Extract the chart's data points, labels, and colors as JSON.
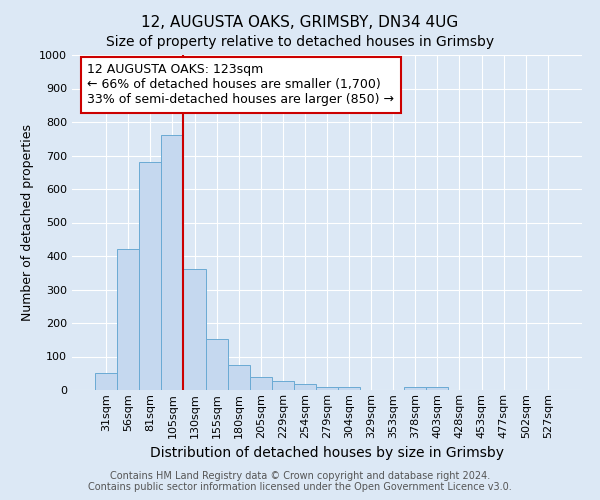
{
  "title1": "12, AUGUSTA OAKS, GRIMSBY, DN34 4UG",
  "title2": "Size of property relative to detached houses in Grimsby",
  "xlabel": "Distribution of detached houses by size in Grimsby",
  "ylabel": "Number of detached properties",
  "bar_labels": [
    "31sqm",
    "56sqm",
    "81sqm",
    "105sqm",
    "130sqm",
    "155sqm",
    "180sqm",
    "205sqm",
    "229sqm",
    "254sqm",
    "279sqm",
    "304sqm",
    "329sqm",
    "353sqm",
    "378sqm",
    "403sqm",
    "428sqm",
    "453sqm",
    "477sqm",
    "502sqm",
    "527sqm"
  ],
  "bar_values": [
    50,
    420,
    680,
    760,
    360,
    153,
    75,
    40,
    28,
    17,
    10,
    8,
    0,
    0,
    8,
    8,
    0,
    0,
    0,
    0,
    0
  ],
  "bar_color": "#c5d8ef",
  "bar_edge_color": "#6aaad4",
  "vline_color": "#cc0000",
  "annotation_line1": "12 AUGUSTA OAKS: 123sqm",
  "annotation_line2": "← 66% of detached houses are smaller (1,700)",
  "annotation_line3": "33% of semi-detached houses are larger (850) →",
  "annotation_box_color": "#ffffff",
  "annotation_box_edge_color": "#cc0000",
  "ylim": [
    0,
    1000
  ],
  "yticks": [
    0,
    100,
    200,
    300,
    400,
    500,
    600,
    700,
    800,
    900,
    1000
  ],
  "footnote1": "Contains HM Land Registry data © Crown copyright and database right 2024.",
  "footnote2": "Contains public sector information licensed under the Open Government Licence v3.0.",
  "bg_color": "#dce8f5",
  "grid_color": "#ffffff",
  "title1_fontsize": 11,
  "title2_fontsize": 10,
  "xlabel_fontsize": 10,
  "ylabel_fontsize": 9,
  "tick_fontsize": 8,
  "annotation_fontsize": 9,
  "footnote_fontsize": 7
}
